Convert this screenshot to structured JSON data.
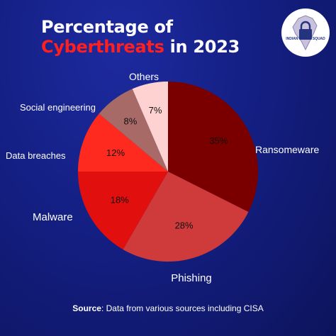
{
  "title_line1": "Percentage of",
  "title_accent": "Cyberthreats",
  "title_rest": " in 2023",
  "logo_text": "INDIAN CYBER SQUAD",
  "logo_icon": "lock-on-india-map-icon",
  "source_label": "Source",
  "source_text": ": Data from various sources including CISA",
  "chart_data": {
    "type": "pie",
    "slices": [
      {
        "label": "Ransomeware",
        "value": 35,
        "value_label": "35%",
        "color": "#7a0000"
      },
      {
        "label": "Phishing",
        "value": 28,
        "value_label": "28%",
        "color": "#cf3a3a"
      },
      {
        "label": "Malware",
        "value": 18,
        "value_label": "18%",
        "color": "#e20f0f"
      },
      {
        "label": "Data breaches",
        "value": 12,
        "value_label": "12%",
        "color": "#ff2a1f"
      },
      {
        "label": "Social engineering",
        "value": 8,
        "value_label": "8%",
        "color": "#a86a66"
      },
      {
        "label": "Others",
        "value": 7,
        "value_label": "7%",
        "color": "#ffd2d2"
      }
    ],
    "start": "12 o'clock",
    "direction": "clockwise"
  }
}
